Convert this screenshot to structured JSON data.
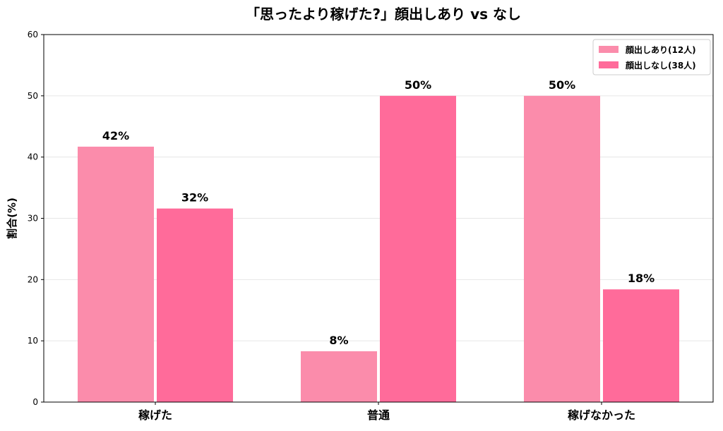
{
  "chart_data": {
    "type": "bar",
    "title": "「思ったより稼げた?」顔出しあり vs なし",
    "ylabel": "割合(%)",
    "xlabel": "",
    "ylim": [
      0,
      60
    ],
    "yticks": [
      0,
      10,
      20,
      30,
      40,
      50,
      60
    ],
    "grid": true,
    "legend_position": "top-right",
    "categories": [
      "稼げた",
      "普通",
      "稼げなかった"
    ],
    "series": [
      {
        "name": "顔出しあり(12人)",
        "color": "#fb8cab",
        "values": [
          41.7,
          8.3,
          50.0
        ],
        "labels": [
          "42%",
          "8%",
          "50%"
        ]
      },
      {
        "name": "顔出しなし(38人)",
        "color": "#ff6b9a",
        "values": [
          31.6,
          50.0,
          18.4
        ],
        "labels": [
          "32%",
          "50%",
          "18%"
        ]
      }
    ]
  }
}
